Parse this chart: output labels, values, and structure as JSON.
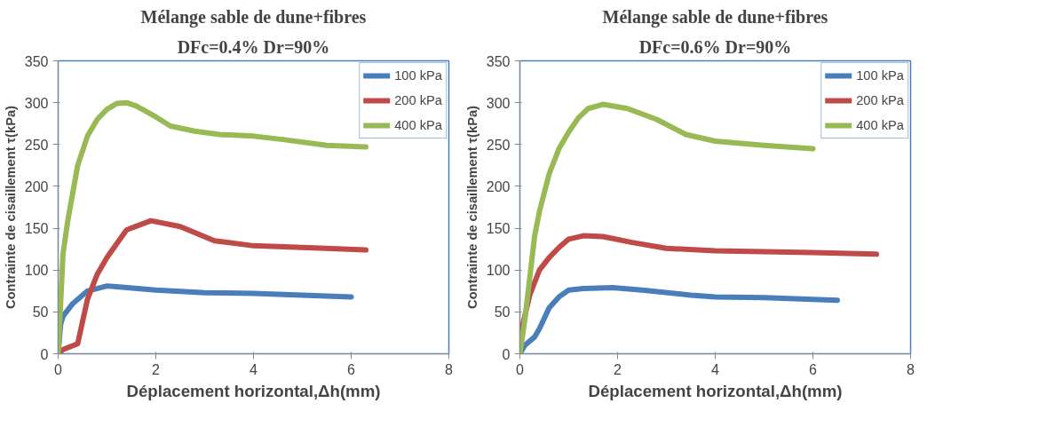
{
  "chart_data": [
    {
      "type": "line",
      "title": "Mélange sable de dune+fibres",
      "subtitle": "DFc=0.4% Dr=90%",
      "xlabel": "Déplacement horizontal,Δh(mm)",
      "ylabel": "Contrainte de cisaillement τ(kPa)",
      "xlim": [
        0,
        8
      ],
      "xticks": [
        0,
        2,
        4,
        6,
        8
      ],
      "ylim": [
        0,
        350
      ],
      "yticks": [
        0,
        50,
        100,
        150,
        200,
        250,
        300,
        350
      ],
      "grid": false,
      "legend": "top right",
      "line_style": "solid",
      "marker": "none",
      "series": [
        {
          "name": "100 kPa",
          "color": "#4a7ebb",
          "x": [
            0,
            0.05,
            0.1,
            0.3,
            0.6,
            1.0,
            1.2,
            2,
            3,
            4,
            5,
            6
          ],
          "values": [
            0,
            35,
            45,
            60,
            75,
            81,
            80,
            76,
            73,
            72,
            70,
            68
          ]
        },
        {
          "name": "200 kPa",
          "color": "#be4b48",
          "x": [
            0,
            0.1,
            0.4,
            0.6,
            0.8,
            1.0,
            1.4,
            1.9,
            2.5,
            3.2,
            4,
            5,
            6.3
          ],
          "values": [
            0,
            5,
            12,
            65,
            95,
            115,
            148,
            159,
            152,
            135,
            129,
            127,
            124
          ]
        },
        {
          "name": "400 kPa",
          "color": "#98b954",
          "x": [
            0,
            0.1,
            0.2,
            0.4,
            0.6,
            0.8,
            1.0,
            1.2,
            1.4,
            1.6,
            2,
            2.3,
            2.8,
            3.3,
            4,
            4.6,
            5.5,
            6.3
          ],
          "values": [
            0,
            120,
            160,
            225,
            260,
            280,
            292,
            299,
            300,
            296,
            283,
            272,
            266,
            262,
            260,
            256,
            249,
            247
          ]
        }
      ]
    },
    {
      "type": "line",
      "title": "Mélange sable de dune+fibres",
      "subtitle": "DFc=0.6% Dr=90%",
      "xlabel": "Déplacement horizontal,Δh(mm)",
      "ylabel": "Contrainte de cisaillement τ(kPa)",
      "xlim": [
        0,
        8
      ],
      "xticks": [
        0,
        2,
        4,
        6,
        8
      ],
      "ylim": [
        0,
        350
      ],
      "yticks": [
        0,
        50,
        100,
        150,
        200,
        250,
        300,
        350
      ],
      "grid": false,
      "legend": "top right",
      "line_style": "solid",
      "marker": "none",
      "series": [
        {
          "name": "100 kPa",
          "color": "#4a7ebb",
          "x": [
            0,
            0.1,
            0.3,
            0.4,
            0.6,
            0.8,
            1.0,
            1.3,
            1.9,
            2.5,
            3.5,
            4,
            5,
            6.5
          ],
          "values": [
            0,
            10,
            20,
            30,
            55,
            68,
            76,
            78,
            79,
            76,
            70,
            68,
            67,
            64
          ]
        },
        {
          "name": "200 kPa",
          "color": "#be4b48",
          "x": [
            0,
            0.1,
            0.2,
            0.4,
            0.6,
            0.8,
            1.0,
            1.3,
            1.7,
            2.3,
            3,
            4,
            5,
            6,
            7.3
          ],
          "values": [
            20,
            45,
            70,
            100,
            115,
            127,
            137,
            141,
            140,
            133,
            126,
            123,
            122,
            121,
            119
          ]
        },
        {
          "name": "400 kPa",
          "color": "#98b954",
          "x": [
            0,
            0.1,
            0.2,
            0.3,
            0.4,
            0.6,
            0.8,
            1.0,
            1.2,
            1.4,
            1.7,
            2.2,
            2.8,
            3.4,
            4,
            5,
            6
          ],
          "values": [
            0,
            40,
            90,
            140,
            170,
            215,
            245,
            265,
            282,
            293,
            298,
            293,
            280,
            262,
            254,
            249,
            245
          ]
        }
      ]
    }
  ]
}
